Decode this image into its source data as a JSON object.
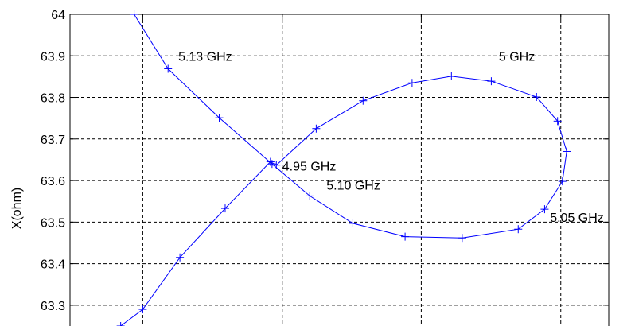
{
  "chart_data": {
    "type": "line",
    "title": "",
    "xlabel": "",
    "ylabel": "X(ohm)",
    "ylim": [
      63.25,
      64.0
    ],
    "xlim": [
      0,
      1
    ],
    "grid": true,
    "y_ticks": [
      63.3,
      63.4,
      63.5,
      63.6,
      63.7,
      63.8,
      63.9,
      64
    ],
    "y_tick_labels": [
      "63.3",
      "63.4",
      "63.5",
      "63.6",
      "63.7",
      "63.8",
      "63.9",
      "64"
    ],
    "x_grid": [
      0.135,
      0.394,
      0.652,
      0.911
    ],
    "colors": {
      "line": "#0000ff",
      "grid": "#000000",
      "axis": "#000000"
    },
    "series": [
      {
        "points": [
          [
            0.094,
            63.25
          ],
          [
            0.135,
            63.29
          ],
          [
            0.204,
            63.415
          ],
          [
            0.288,
            63.533
          ],
          [
            0.372,
            63.645
          ],
          [
            0.383,
            63.637
          ],
          [
            0.457,
            63.725
          ],
          [
            0.544,
            63.792
          ],
          [
            0.635,
            63.835
          ],
          [
            0.708,
            63.851
          ],
          [
            0.782,
            63.839
          ],
          [
            0.866,
            63.801
          ],
          [
            0.905,
            63.743
          ],
          [
            0.922,
            63.67
          ],
          [
            0.914,
            63.598
          ],
          [
            0.881,
            63.531
          ],
          [
            0.832,
            63.483
          ],
          [
            0.728,
            63.462
          ],
          [
            0.622,
            63.465
          ],
          [
            0.525,
            63.497
          ],
          [
            0.445,
            63.563
          ],
          [
            0.375,
            63.64
          ],
          [
            0.277,
            63.751
          ],
          [
            0.182,
            63.869
          ],
          [
            0.119,
            64.0
          ]
        ]
      }
    ],
    "annotations": [
      {
        "text": "5.13 GHz",
        "x": 0.201,
        "y": 63.9
      },
      {
        "text": "5 GHz",
        "x": 0.796,
        "y": 63.9
      },
      {
        "text": "4.95 GHz",
        "x": 0.394,
        "y": 63.636
      },
      {
        "text": "5.10 GHz",
        "x": 0.476,
        "y": 63.59
      },
      {
        "text": "5.05 GHz",
        "x": 0.891,
        "y": 63.512
      }
    ]
  }
}
